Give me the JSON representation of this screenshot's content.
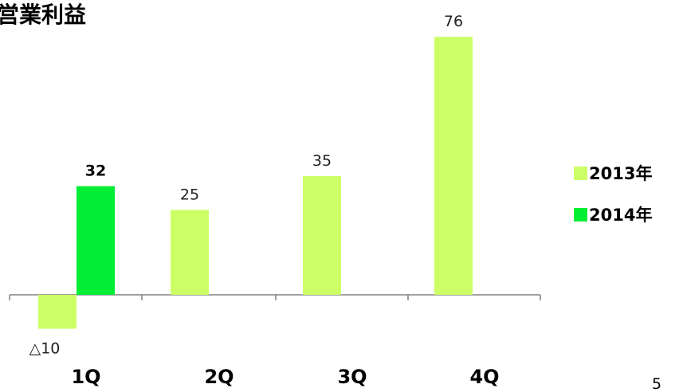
{
  "page_number": "5",
  "chart_data": {
    "type": "bar",
    "title": "営業利益",
    "categories": [
      "1Q",
      "2Q",
      "3Q",
      "4Q"
    ],
    "series": [
      {
        "name": "2013年",
        "color": "#ccff66",
        "values": [
          -10,
          25,
          35,
          76
        ],
        "labels": [
          "△10",
          "25",
          "35",
          "76"
        ]
      },
      {
        "name": "2014年",
        "color": "#00ee33",
        "values": [
          32,
          null,
          null,
          null
        ],
        "labels": [
          "32",
          null,
          null,
          null
        ]
      }
    ],
    "xlabel": "",
    "ylabel": "",
    "grid": false,
    "legend_position": "right"
  }
}
